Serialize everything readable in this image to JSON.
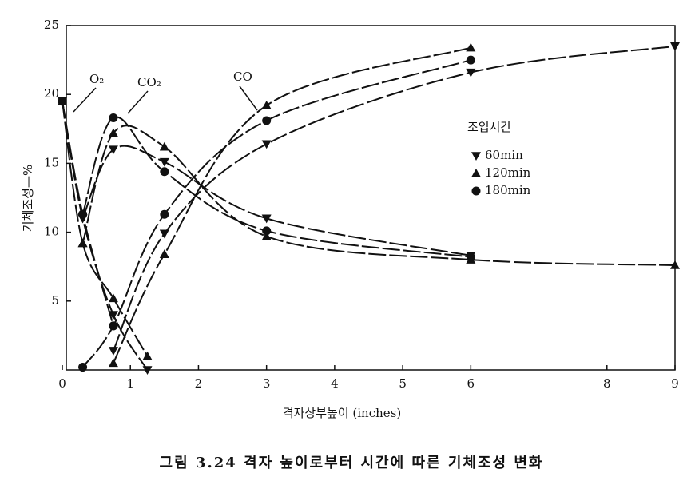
{
  "chart_data": {
    "type": "line",
    "caption": "그림 3.24 격자 높이로부터 시간에 따른 기체조성 변화",
    "x_label": "격자상부높이 (inches)",
    "y_label": "기체조성—%",
    "legend_title": "조입시간",
    "gas_labels": [
      "O₂",
      "CO₂",
      "CO"
    ],
    "xlim": [
      0,
      9
    ],
    "ylim": [
      0,
      25
    ],
    "xticks": [
      0,
      1,
      2,
      3,
      4,
      5,
      6,
      8,
      9
    ],
    "yticks": [
      5,
      10,
      15,
      20,
      25
    ],
    "color": "#111111",
    "series": [
      {
        "name": "60min",
        "marker": "triangle-down",
        "curves": [
          {
            "x": [
              0,
              0.3,
              0.75,
              1.25
            ],
            "values": [
              19.5,
              11,
              4.0,
              0
            ]
          },
          {
            "x": [
              0.3,
              0.75,
              1.5,
              3,
              6
            ],
            "values": [
              11,
              16.0,
              15.1,
              11.0,
              8.3
            ]
          },
          {
            "x": [
              0.75,
              1.5,
              3,
              6,
              9
            ],
            "values": [
              1.4,
              9.9,
              16.4,
              21.6,
              23.5
            ]
          }
        ]
      },
      {
        "name": "120min",
        "marker": "triangle-up",
        "curves": [
          {
            "x": [
              0,
              0.3,
              0.75,
              1.25
            ],
            "values": [
              19.5,
              9.2,
              5.2,
              1.0
            ]
          },
          {
            "x": [
              0.3,
              0.75,
              1.5,
              3,
              6,
              9
            ],
            "values": [
              9.2,
              17.2,
              16.2,
              9.7,
              8.0,
              7.6
            ]
          },
          {
            "x": [
              0.75,
              1.5,
              3,
              6
            ],
            "values": [
              0.5,
              8.4,
              19.2,
              23.4
            ]
          }
        ]
      },
      {
        "name": "180min",
        "marker": "circle",
        "curves": [
          {
            "x": [
              0,
              0.3,
              0.75
            ],
            "values": [
              19.5,
              11.3,
              3.2
            ]
          },
          {
            "x": [
              0.3,
              0.75,
              1.5,
              3,
              6
            ],
            "values": [
              11.3,
              18.3,
              14.4,
              10.1,
              8.2
            ]
          },
          {
            "x": [
              0.3,
              0.75,
              1.5,
              3,
              6
            ],
            "values": [
              0.2,
              3.2,
              11.3,
              18.1,
              22.5
            ]
          }
        ]
      }
    ]
  }
}
